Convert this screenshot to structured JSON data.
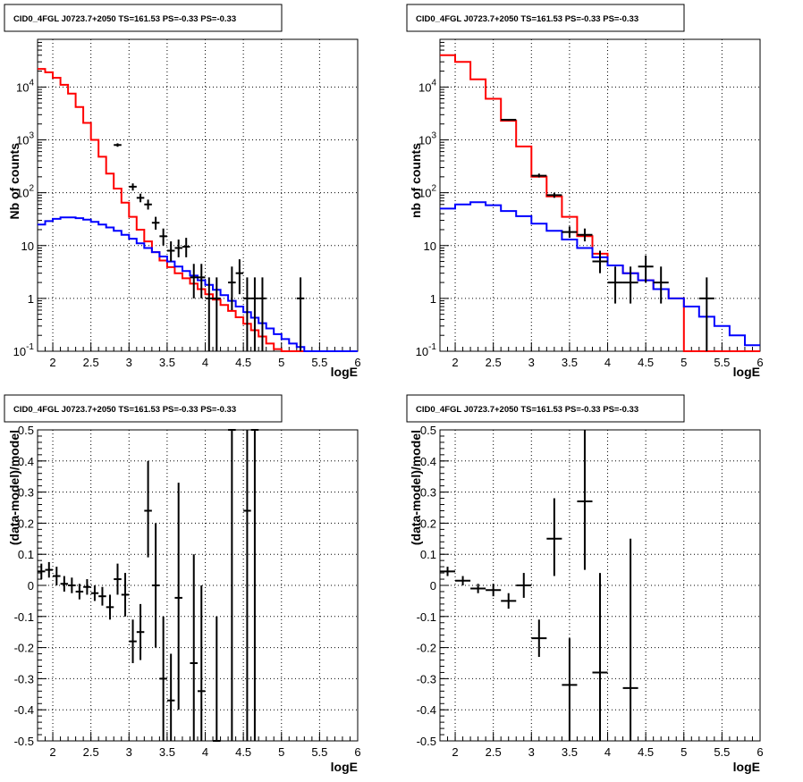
{
  "chart_data": [
    {
      "type": "line",
      "panel": "top-left",
      "title": "CID0_4FGL J0723.7+2050 TS=161.53 PS=-0.33 PS=-0.33",
      "xlabel": "logE",
      "ylabel": "Nb of counts",
      "xlim": [
        1.8,
        6
      ],
      "ylim": [
        0.1,
        80000
      ],
      "log_y": true,
      "grid": true,
      "x_ticks": [
        "2",
        "2.5",
        "3",
        "3.5",
        "4",
        "4.5",
        "5",
        "5.5",
        "6"
      ],
      "y_ticks": [
        "10^-1",
        "1",
        "10",
        "10^2",
        "10^3",
        "10^4"
      ],
      "bin_edges": [
        1.8,
        1.9,
        2.0,
        2.1,
        2.2,
        2.3,
        2.4,
        2.5,
        2.6,
        2.7,
        2.8,
        2.9,
        3.0,
        3.1,
        3.2,
        3.3,
        3.4,
        3.5,
        3.6,
        3.7,
        3.8,
        3.9,
        4.0,
        4.1,
        4.2,
        4.3,
        4.4,
        4.5,
        4.6,
        4.7,
        4.8,
        4.9,
        5.0,
        5.1,
        5.2,
        5.3,
        5.4,
        5.5,
        5.6,
        5.7,
        5.8,
        5.9,
        6.0
      ],
      "series": [
        {
          "color": "#ff0000",
          "kind": "step",
          "values": [
            22000,
            19000,
            15000,
            11000,
            7500,
            4200,
            2100,
            1000,
            480,
            230,
            120,
            65,
            35,
            20,
            12,
            7.5,
            5.2,
            3.9,
            3.0,
            2.4,
            1.9,
            1.5,
            1.2,
            0.95,
            0.75,
            0.58,
            0.44,
            0.33,
            0.25,
            0.19,
            0.14,
            0.11,
            0.1,
            0.1,
            0.1,
            0.1,
            0.1,
            0.1,
            0.1,
            0.1,
            0.1,
            0.1
          ]
        },
        {
          "color": "#0000ff",
          "kind": "step",
          "values": [
            25,
            29,
            32,
            34,
            34,
            33,
            31,
            28,
            25,
            22,
            19,
            16,
            13.5,
            11,
            9,
            7.5,
            6.2,
            5.0,
            4.0,
            3.3,
            2.7,
            2.2,
            1.8,
            1.45,
            1.15,
            0.9,
            0.7,
            0.55,
            0.43,
            0.34,
            0.27,
            0.21,
            0.17,
            0.14,
            0.12,
            0.1,
            0.1,
            0.1,
            0.1,
            0.1,
            0.1,
            0.1
          ]
        },
        {
          "color": "#000000",
          "kind": "points",
          "points": [
            {
              "x": 2.85,
              "y": 800,
              "xerr": 0.05,
              "ylo": 740,
              "yhi": 860
            },
            {
              "x": 3.05,
              "y": 130,
              "xerr": 0.05,
              "ylo": 110,
              "yhi": 150
            },
            {
              "x": 3.15,
              "y": 80,
              "xerr": 0.05,
              "ylo": 66,
              "yhi": 96
            },
            {
              "x": 3.25,
              "y": 60,
              "xerr": 0.05,
              "ylo": 48,
              "yhi": 74
            },
            {
              "x": 3.35,
              "y": 27,
              "xerr": 0.05,
              "ylo": 20,
              "yhi": 35
            },
            {
              "x": 3.45,
              "y": 15,
              "xerr": 0.05,
              "ylo": 10,
              "yhi": 21
            },
            {
              "x": 3.55,
              "y": 8,
              "xerr": 0.05,
              "ylo": 5,
              "yhi": 12
            },
            {
              "x": 3.65,
              "y": 9,
              "xerr": 0.05,
              "ylo": 6,
              "yhi": 13
            },
            {
              "x": 3.75,
              "y": 9.5,
              "xerr": 0.05,
              "ylo": 6,
              "yhi": 14
            },
            {
              "x": 3.85,
              "y": 2.5,
              "xerr": 0.05,
              "ylo": 1.0,
              "yhi": 4.5
            },
            {
              "x": 3.95,
              "y": 2.5,
              "xerr": 0.05,
              "ylo": 1.0,
              "yhi": 4.5
            },
            {
              "x": 4.05,
              "y": 1,
              "xerr": 0.05,
              "ylo": 0.1,
              "yhi": 2.5
            },
            {
              "x": 4.15,
              "y": 1,
              "xerr": 0.05,
              "ylo": 0.1,
              "yhi": 2.5
            },
            {
              "x": 4.35,
              "y": 2,
              "xerr": 0.05,
              "ylo": 0.6,
              "yhi": 4
            },
            {
              "x": 4.45,
              "y": 3,
              "xerr": 0.05,
              "ylo": 1.2,
              "yhi": 5.5
            },
            {
              "x": 4.55,
              "y": 1,
              "xerr": 0.05,
              "ylo": 0.1,
              "yhi": 2.5
            },
            {
              "x": 4.65,
              "y": 1,
              "xerr": 0.05,
              "ylo": 0.1,
              "yhi": 2.5
            },
            {
              "x": 4.75,
              "y": 1,
              "xerr": 0.05,
              "ylo": 0.1,
              "yhi": 2.5
            },
            {
              "x": 5.25,
              "y": 1,
              "xerr": 0.05,
              "ylo": 0.1,
              "yhi": 2.5
            }
          ]
        }
      ]
    },
    {
      "type": "line",
      "panel": "top-right",
      "title": "CID0_4FGL J0723.7+2050 TS=161.53 PS=-0.33 PS=-0.33",
      "xlabel": "logE",
      "ylabel": "nb of counts",
      "xlim": [
        1.8,
        6
      ],
      "ylim": [
        0.1,
        80000
      ],
      "log_y": true,
      "grid": true,
      "x_ticks": [
        "2",
        "2.5",
        "3",
        "3.5",
        "4",
        "4.5",
        "5",
        "5.5",
        "6"
      ],
      "y_ticks": [
        "10^-1",
        "1",
        "10",
        "10^2",
        "10^3",
        "10^4"
      ],
      "bin_edges": [
        1.8,
        2.0,
        2.2,
        2.4,
        2.6,
        2.8,
        3.0,
        3.2,
        3.4,
        3.6,
        3.8,
        4.0,
        4.2,
        4.4,
        4.6,
        4.8,
        5.0,
        5.2,
        5.4,
        5.6,
        5.8,
        6.0
      ],
      "series": [
        {
          "color": "#ff0000",
          "kind": "step",
          "values": [
            40000,
            30000,
            14000,
            6000,
            2300,
            750,
            200,
            85,
            35,
            15,
            7,
            4.2,
            3.0,
            2.2,
            1.5,
            1.0,
            0.1,
            0.1,
            0.1,
            0.1,
            0.1
          ]
        },
        {
          "color": "#0000ff",
          "kind": "step",
          "values": [
            50,
            60,
            66,
            58,
            45,
            36,
            26,
            19,
            13,
            9,
            6,
            4.2,
            3.0,
            2.2,
            1.5,
            1.0,
            0.7,
            0.45,
            0.3,
            0.2,
            0.13
          ]
        },
        {
          "color": "#000000",
          "kind": "points",
          "points": [
            {
              "x": 2.7,
              "y": 2400,
              "xerr": 0.1,
              "ylo": 2300,
              "yhi": 2500
            },
            {
              "x": 3.1,
              "y": 210,
              "xerr": 0.1,
              "ylo": 195,
              "yhi": 230
            },
            {
              "x": 3.3,
              "y": 90,
              "xerr": 0.1,
              "ylo": 80,
              "yhi": 100
            },
            {
              "x": 3.5,
              "y": 18,
              "xerr": 0.1,
              "ylo": 14,
              "yhi": 23
            },
            {
              "x": 3.7,
              "y": 16,
              "xerr": 0.1,
              "ylo": 12,
              "yhi": 21
            },
            {
              "x": 3.9,
              "y": 5,
              "xerr": 0.1,
              "ylo": 3,
              "yhi": 8
            },
            {
              "x": 4.1,
              "y": 2,
              "xerr": 0.1,
              "ylo": 0.8,
              "yhi": 4
            },
            {
              "x": 4.3,
              "y": 2,
              "xerr": 0.1,
              "ylo": 0.8,
              "yhi": 4
            },
            {
              "x": 4.5,
              "y": 4,
              "xerr": 0.1,
              "ylo": 2,
              "yhi": 6.5
            },
            {
              "x": 4.7,
              "y": 2,
              "xerr": 0.1,
              "ylo": 0.8,
              "yhi": 4
            },
            {
              "x": 5.3,
              "y": 1,
              "xerr": 0.1,
              "ylo": 0.1,
              "yhi": 2.5
            }
          ]
        }
      ]
    },
    {
      "type": "scatter",
      "panel": "bottom-left",
      "title": "CID0_4FGL J0723.7+2050 TS=161.53 PS=-0.33 PS=-0.33",
      "xlabel": "logE",
      "ylabel": "(data-model)/model",
      "xlim": [
        1.8,
        6
      ],
      "ylim": [
        -0.5,
        0.5
      ],
      "grid": true,
      "x_ticks": [
        "2",
        "2.5",
        "3",
        "3.5",
        "4",
        "4.5",
        "5",
        "5.5",
        "6"
      ],
      "y_ticks": [
        "-0.5",
        "-0.4",
        "-0.3",
        "-0.2",
        "-0.1",
        "0",
        "0.1",
        "0.2",
        "0.3",
        "0.4",
        "0.5"
      ],
      "series": [
        {
          "color": "#000000",
          "points": [
            {
              "x": 1.85,
              "y": 0.045,
              "xerr": 0.05,
              "ylo": 0.02,
              "yhi": 0.07
            },
            {
              "x": 1.95,
              "y": 0.05,
              "xerr": 0.05,
              "ylo": 0.025,
              "yhi": 0.075
            },
            {
              "x": 2.05,
              "y": 0.03,
              "xerr": 0.05,
              "ylo": 0.0,
              "yhi": 0.06
            },
            {
              "x": 2.15,
              "y": 0.005,
              "xerr": 0.05,
              "ylo": -0.02,
              "yhi": 0.03
            },
            {
              "x": 2.25,
              "y": 0.0,
              "xerr": 0.05,
              "ylo": -0.025,
              "yhi": 0.025
            },
            {
              "x": 2.35,
              "y": -0.02,
              "xerr": 0.05,
              "ylo": -0.045,
              "yhi": 0.005
            },
            {
              "x": 2.45,
              "y": -0.005,
              "xerr": 0.05,
              "ylo": -0.03,
              "yhi": 0.02
            },
            {
              "x": 2.55,
              "y": -0.025,
              "xerr": 0.05,
              "ylo": -0.05,
              "yhi": 0.0
            },
            {
              "x": 2.65,
              "y": -0.035,
              "xerr": 0.05,
              "ylo": -0.065,
              "yhi": -0.005
            },
            {
              "x": 2.75,
              "y": -0.07,
              "xerr": 0.05,
              "ylo": -0.11,
              "yhi": -0.03
            },
            {
              "x": 2.85,
              "y": 0.02,
              "xerr": 0.05,
              "ylo": -0.03,
              "yhi": 0.07
            },
            {
              "x": 2.95,
              "y": -0.03,
              "xerr": 0.05,
              "ylo": -0.1,
              "yhi": 0.04
            },
            {
              "x": 3.05,
              "y": -0.18,
              "xerr": 0.05,
              "ylo": -0.25,
              "yhi": -0.11
            },
            {
              "x": 3.15,
              "y": -0.15,
              "xerr": 0.05,
              "ylo": -0.24,
              "yhi": -0.06
            },
            {
              "x": 3.25,
              "y": 0.24,
              "xerr": 0.05,
              "ylo": 0.09,
              "yhi": 0.4
            },
            {
              "x": 3.35,
              "y": 0.0,
              "xerr": 0.05,
              "ylo": -0.2,
              "yhi": 0.2
            },
            {
              "x": 3.45,
              "y": -0.3,
              "xerr": 0.05,
              "ylo": -0.5,
              "yhi": -0.1
            },
            {
              "x": 3.55,
              "y": -0.37,
              "xerr": 0.05,
              "ylo": -0.5,
              "yhi": -0.22
            },
            {
              "x": 3.65,
              "y": -0.04,
              "xerr": 0.05,
              "ylo": -0.4,
              "yhi": 0.33
            },
            {
              "x": 3.85,
              "y": -0.25,
              "xerr": 0.05,
              "ylo": -0.5,
              "yhi": 0.1
            },
            {
              "x": 3.95,
              "y": -0.34,
              "xerr": 0.05,
              "ylo": -0.5,
              "yhi": 0.0
            },
            {
              "x": 4.15,
              "y": -0.5,
              "xerr": 0.05,
              "ylo": -0.5,
              "yhi": -0.1
            },
            {
              "x": 4.35,
              "y": 0.5,
              "xerr": 0.05,
              "ylo": -0.5,
              "yhi": 0.5
            },
            {
              "x": 4.55,
              "y": 0.24,
              "xerr": 0.05,
              "ylo": -0.5,
              "yhi": 0.5
            },
            {
              "x": 4.65,
              "y": 0.5,
              "xerr": 0.05,
              "ylo": -0.5,
              "yhi": 0.5
            }
          ]
        }
      ]
    },
    {
      "type": "scatter",
      "panel": "bottom-right",
      "title": "CID0_4FGL J0723.7+2050 TS=161.53 PS=-0.33 PS=-0.33",
      "xlabel": "logE",
      "ylabel": "(data-model)/model",
      "xlim": [
        1.8,
        6
      ],
      "ylim": [
        -0.5,
        0.5
      ],
      "grid": true,
      "x_ticks": [
        "2",
        "2.5",
        "3",
        "3.5",
        "4",
        "4.5",
        "5",
        "5.5",
        "6"
      ],
      "y_ticks": [
        "-0.5",
        "-0.4",
        "-0.3",
        "-0.2",
        "-0.1",
        "0",
        "0.1",
        "0.2",
        "0.3",
        "0.4",
        "0.5"
      ],
      "series": [
        {
          "color": "#000000",
          "points": [
            {
              "x": 1.9,
              "y": 0.045,
              "xerr": 0.1,
              "ylo": 0.03,
              "yhi": 0.06
            },
            {
              "x": 2.1,
              "y": 0.015,
              "xerr": 0.1,
              "ylo": 0.0,
              "yhi": 0.03
            },
            {
              "x": 2.3,
              "y": -0.01,
              "xerr": 0.1,
              "ylo": -0.025,
              "yhi": 0.005
            },
            {
              "x": 2.5,
              "y": -0.015,
              "xerr": 0.1,
              "ylo": -0.035,
              "yhi": 0.005
            },
            {
              "x": 2.7,
              "y": -0.05,
              "xerr": 0.1,
              "ylo": -0.075,
              "yhi": -0.025
            },
            {
              "x": 2.9,
              "y": 0.0,
              "xerr": 0.1,
              "ylo": -0.04,
              "yhi": 0.04
            },
            {
              "x": 3.1,
              "y": -0.17,
              "xerr": 0.1,
              "ylo": -0.23,
              "yhi": -0.11
            },
            {
              "x": 3.3,
              "y": 0.15,
              "xerr": 0.1,
              "ylo": 0.03,
              "yhi": 0.28
            },
            {
              "x": 3.5,
              "y": -0.32,
              "xerr": 0.1,
              "ylo": -0.5,
              "yhi": -0.17
            },
            {
              "x": 3.7,
              "y": 0.27,
              "xerr": 0.1,
              "ylo": 0.05,
              "yhi": 0.5
            },
            {
              "x": 3.9,
              "y": -0.28,
              "xerr": 0.1,
              "ylo": -0.5,
              "yhi": 0.04
            },
            {
              "x": 4.3,
              "y": -0.33,
              "xerr": 0.1,
              "ylo": -0.5,
              "yhi": 0.15
            }
          ]
        }
      ]
    }
  ]
}
